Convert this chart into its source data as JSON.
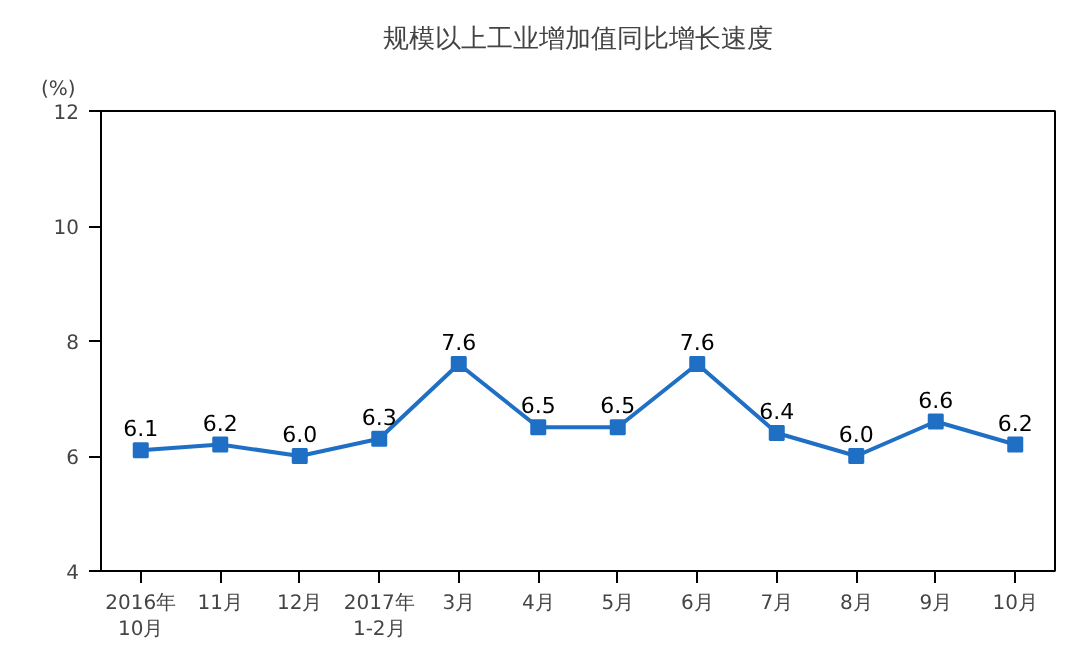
{
  "chart_data": {
    "type": "line",
    "title": "规模以上工业增加值同比增长速度",
    "ylabel": "(%)",
    "categories": [
      "2016年\n10月",
      "11月",
      "12月",
      "2017年\n1-2月",
      "3月",
      "4月",
      "5月",
      "6月",
      "7月",
      "8月",
      "9月",
      "10月"
    ],
    "series": [
      {
        "color": "#1f6fc5",
        "values": [
          6.1,
          6.2,
          6.0,
          6.3,
          7.6,
          6.5,
          6.5,
          7.6,
          6.4,
          6.0,
          6.6,
          6.2
        ],
        "value_labels": [
          "6.1",
          "6.2",
          "6.0",
          "6.3",
          "7.6",
          "6.5",
          "6.5",
          "7.6",
          "6.4",
          "6.0",
          "6.6",
          "6.2"
        ]
      }
    ],
    "ylim": [
      4,
      12
    ],
    "yticks": [
      4,
      6,
      8,
      10,
      12
    ],
    "marker": "square",
    "grid": false
  }
}
